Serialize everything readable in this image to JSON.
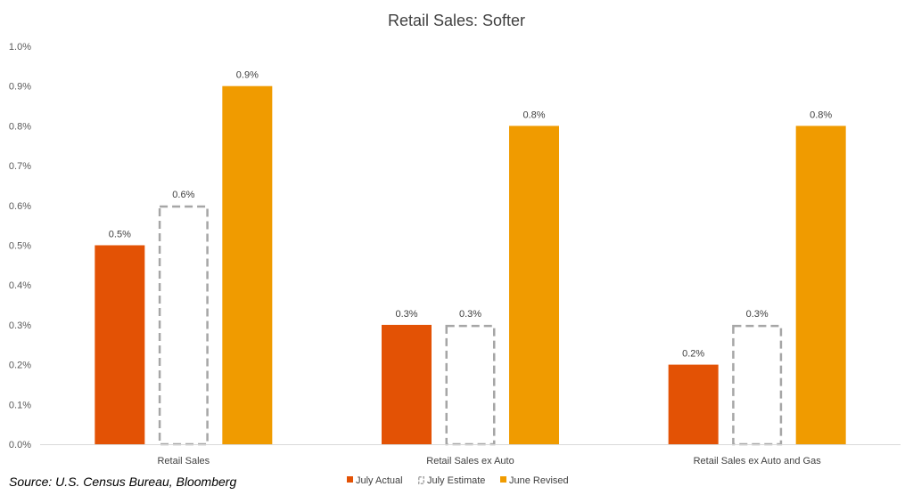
{
  "chart_data": {
    "type": "bar",
    "title": "Retail Sales: Softer",
    "categories": [
      "Retail Sales",
      "Retail Sales ex Auto",
      "Retail Sales ex Auto and Gas"
    ],
    "series": [
      {
        "name": "July Actual",
        "values": [
          0.5,
          0.3,
          0.2
        ],
        "color": "#e35205",
        "style": "solid"
      },
      {
        "name": "July Estimate",
        "values": [
          0.6,
          0.3,
          0.3
        ],
        "color": "#a6a6a6",
        "style": "dashed-outline"
      },
      {
        "name": "June Revised",
        "values": [
          0.9,
          0.8,
          0.8
        ],
        "color": "#f09b00",
        "style": "solid"
      }
    ],
    "data_labels": [
      [
        "0.5%",
        "0.3%",
        "0.2%"
      ],
      [
        "0.6%",
        "0.3%",
        "0.3%"
      ],
      [
        "0.9%",
        "0.8%",
        "0.8%"
      ]
    ],
    "ylim": [
      0,
      1.0
    ],
    "yticks": [
      0,
      0.1,
      0.2,
      0.3,
      0.4,
      0.5,
      0.6,
      0.7,
      0.8,
      0.9,
      1.0
    ],
    "ytick_labels": [
      "0.0%",
      "0.1%",
      "0.2%",
      "0.3%",
      "0.4%",
      "0.5%",
      "0.6%",
      "0.7%",
      "0.8%",
      "0.9%",
      "1.0%"
    ],
    "grid": false,
    "legend_position": "bottom"
  },
  "source": "Source: U.S. Census Bureau, Bloomberg"
}
